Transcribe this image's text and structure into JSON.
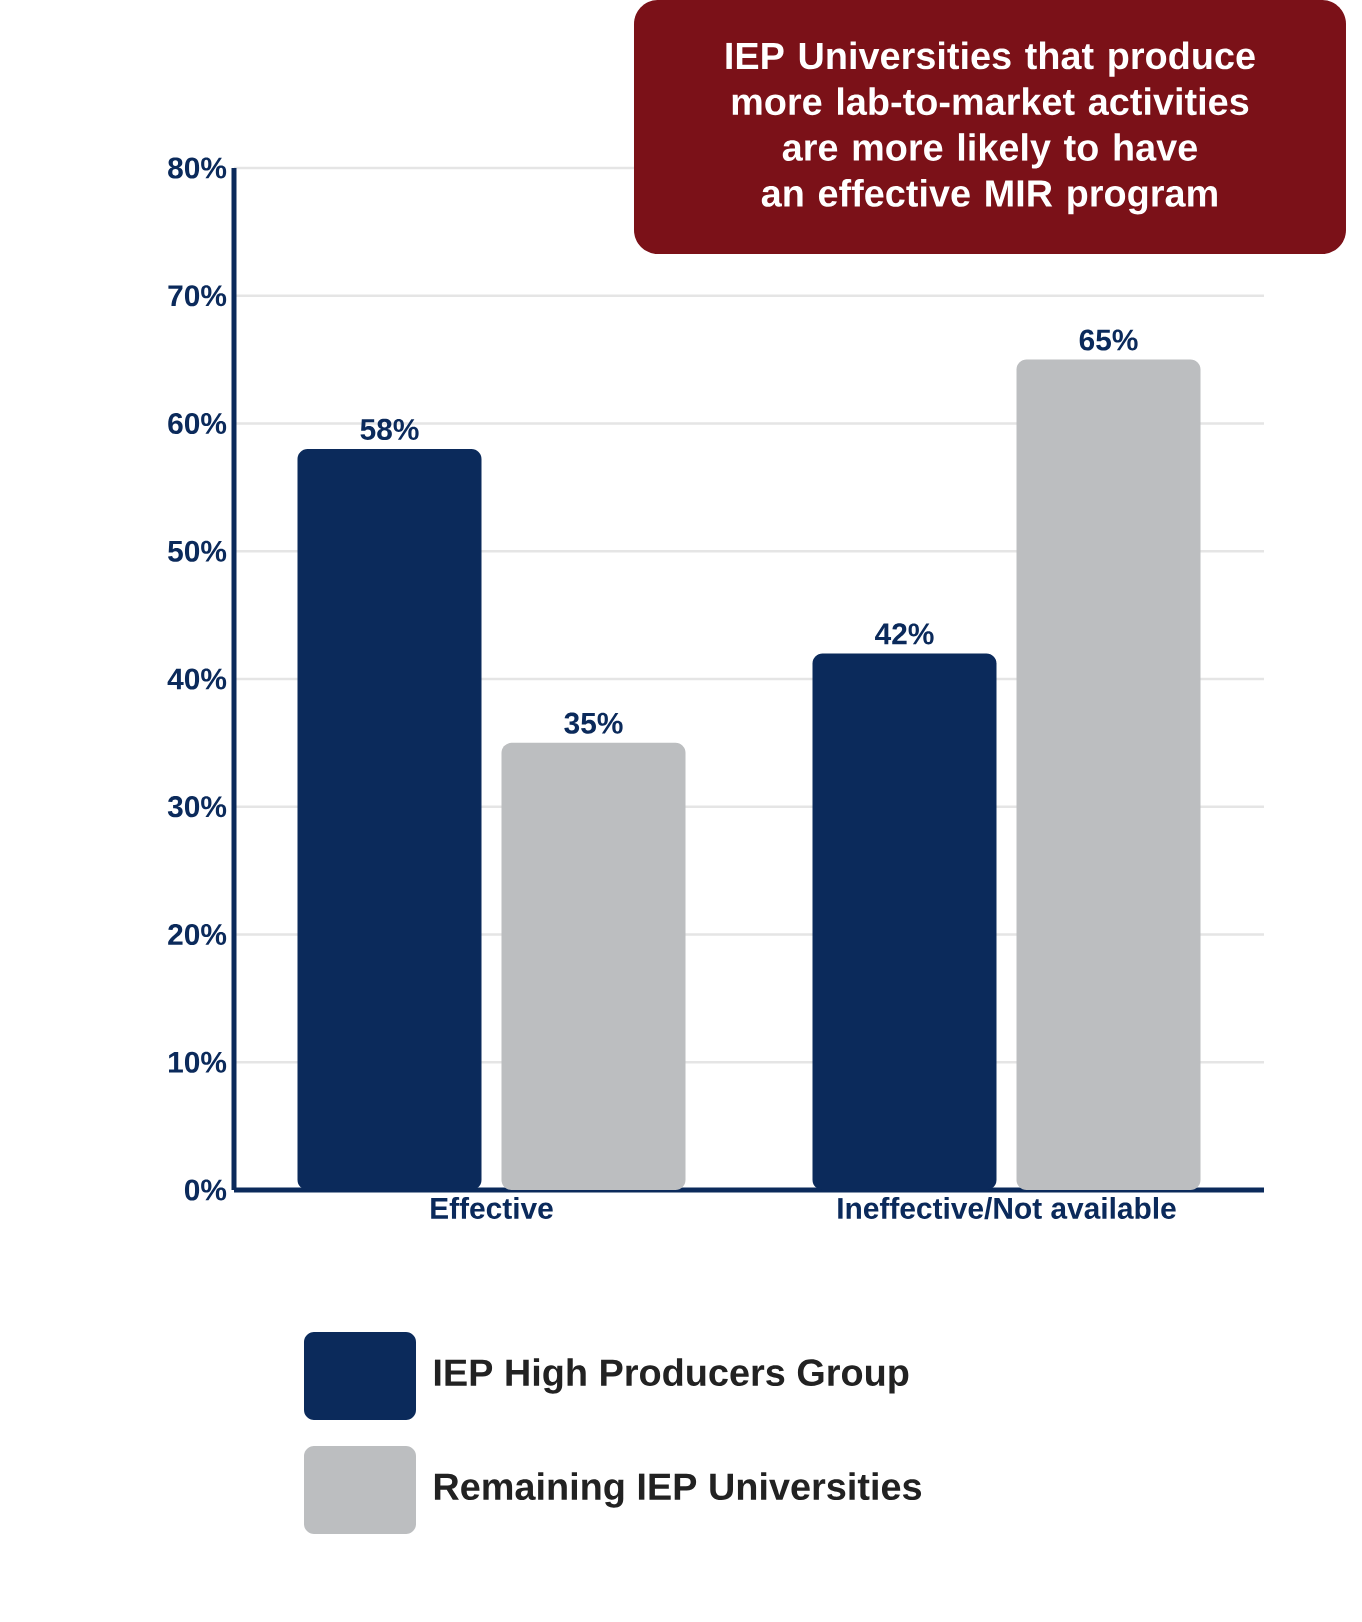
{
  "chart_data": {
    "type": "bar",
    "title": "IEP Universities that produce more lab-to-market activities are more likely to have an effective MIR program",
    "categories": [
      "Effective",
      "Ineffective/Not available"
    ],
    "series": [
      {
        "name": "IEP High Producers Group",
        "color": "#0b2a5b",
        "values": [
          58,
          42
        ],
        "value_labels": [
          "58%",
          "42%"
        ]
      },
      {
        "name": "Remaining IEP Universities",
        "color": "#bcbec0",
        "values": [
          35,
          65
        ],
        "value_labels": [
          "35%",
          "65%"
        ]
      }
    ],
    "ylim": [
      0,
      80
    ],
    "yticks": [
      {
        "value": 0,
        "label": "0%"
      },
      {
        "value": 10,
        "label": "10%"
      },
      {
        "value": 20,
        "label": "20%"
      },
      {
        "value": 30,
        "label": "30%"
      },
      {
        "value": 40,
        "label": "40%"
      },
      {
        "value": 50,
        "label": "50%"
      },
      {
        "value": 60,
        "label": "60%"
      },
      {
        "value": 70,
        "label": "70%"
      },
      {
        "value": 80,
        "label": "80%"
      }
    ],
    "grid": "y",
    "legend": "bottom"
  }
}
